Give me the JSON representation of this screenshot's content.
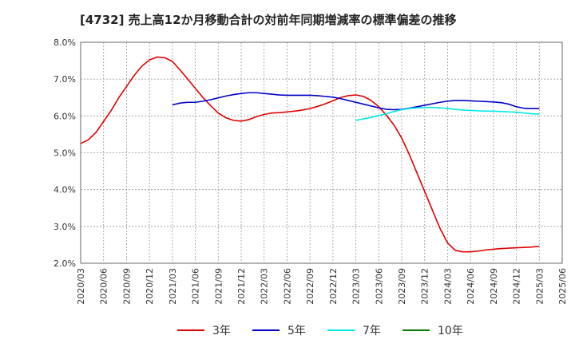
{
  "chart_data": {
    "type": "line",
    "title": "[4732]  売上高12か月移動合計の対前年同期増減率の標準偏差の推移",
    "xlabel": "",
    "ylabel": "",
    "x_tick_labels": [
      "2020/03",
      "2020/06",
      "2020/09",
      "2020/12",
      "2021/03",
      "2021/06",
      "2021/09",
      "2021/12",
      "2022/03",
      "2022/06",
      "2022/09",
      "2022/12",
      "2023/03",
      "2023/06",
      "2023/09",
      "2023/12",
      "2024/03",
      "2024/06",
      "2024/09",
      "2024/12",
      "2025/03",
      "2025/06"
    ],
    "y_tick_labels": [
      "2.0%",
      "3.0%",
      "4.0%",
      "5.0%",
      "6.0%",
      "7.0%",
      "8.0%"
    ],
    "ylim": [
      2.0,
      8.0
    ],
    "grid": true,
    "legend_position": "bottom",
    "series": [
      {
        "name": "3年",
        "color": "#e00000",
        "x": [
          "2020/03",
          "2020/04",
          "2020/05",
          "2020/06",
          "2020/07",
          "2020/08",
          "2020/09",
          "2020/10",
          "2020/11",
          "2020/12",
          "2021/01",
          "2021/02",
          "2021/03",
          "2021/04",
          "2021/05",
          "2021/06",
          "2021/07",
          "2021/08",
          "2021/09",
          "2021/10",
          "2021/11",
          "2021/12",
          "2022/01",
          "2022/02",
          "2022/03",
          "2022/04",
          "2022/05",
          "2022/06",
          "2022/07",
          "2022/08",
          "2022/09",
          "2022/10",
          "2022/11",
          "2022/12",
          "2023/01",
          "2023/02",
          "2023/03",
          "2023/04",
          "2023/05",
          "2023/06",
          "2023/07",
          "2023/08",
          "2023/09",
          "2023/10",
          "2023/11",
          "2023/12",
          "2024/01",
          "2024/02",
          "2024/03",
          "2024/04",
          "2024/05",
          "2024/06",
          "2024/07",
          "2024/08",
          "2024/09",
          "2024/10",
          "2024/11",
          "2024/12",
          "2025/01",
          "2025/02",
          "2025/03"
        ],
        "values": [
          5.25,
          5.35,
          5.55,
          5.85,
          6.15,
          6.5,
          6.8,
          7.1,
          7.35,
          7.52,
          7.6,
          7.58,
          7.48,
          7.25,
          7.0,
          6.75,
          6.5,
          6.28,
          6.08,
          5.95,
          5.88,
          5.86,
          5.9,
          5.98,
          6.04,
          6.08,
          6.09,
          6.11,
          6.13,
          6.16,
          6.2,
          6.26,
          6.33,
          6.41,
          6.5,
          6.55,
          6.57,
          6.53,
          6.42,
          6.25,
          6.02,
          5.75,
          5.4,
          4.95,
          4.45,
          3.95,
          3.45,
          2.95,
          2.55,
          2.35,
          2.31,
          2.31,
          2.33,
          2.36,
          2.38,
          2.4,
          2.41,
          2.42,
          2.43,
          2.44,
          2.46
        ]
      },
      {
        "name": "5年",
        "color": "#0000c8",
        "x": [
          "2021/03",
          "2021/04",
          "2021/05",
          "2021/06",
          "2021/07",
          "2021/08",
          "2021/09",
          "2021/10",
          "2021/11",
          "2021/12",
          "2022/01",
          "2022/02",
          "2022/03",
          "2022/04",
          "2022/05",
          "2022/06",
          "2022/07",
          "2022/08",
          "2022/09",
          "2022/10",
          "2022/11",
          "2022/12",
          "2023/01",
          "2023/02",
          "2023/03",
          "2023/04",
          "2023/05",
          "2023/06",
          "2023/07",
          "2023/08",
          "2023/09",
          "2023/10",
          "2023/11",
          "2023/12",
          "2024/01",
          "2024/02",
          "2024/03",
          "2024/04",
          "2024/05",
          "2024/06",
          "2024/07",
          "2024/08",
          "2024/09",
          "2024/10",
          "2024/11",
          "2024/12",
          "2025/01",
          "2025/02",
          "2025/03"
        ],
        "values": [
          6.3,
          6.35,
          6.37,
          6.37,
          6.4,
          6.44,
          6.49,
          6.54,
          6.58,
          6.61,
          6.63,
          6.63,
          6.61,
          6.59,
          6.57,
          6.56,
          6.56,
          6.56,
          6.56,
          6.55,
          6.53,
          6.51,
          6.47,
          6.42,
          6.37,
          6.32,
          6.27,
          6.22,
          6.18,
          6.17,
          6.18,
          6.21,
          6.25,
          6.29,
          6.33,
          6.37,
          6.4,
          6.42,
          6.42,
          6.41,
          6.4,
          6.39,
          6.38,
          6.36,
          6.32,
          6.25,
          6.21,
          6.2,
          6.2
        ]
      },
      {
        "name": "7年",
        "color": "#00e8e8",
        "x": [
          "2023/03",
          "2023/04",
          "2023/05",
          "2023/06",
          "2023/07",
          "2023/08",
          "2023/09",
          "2023/10",
          "2023/11",
          "2023/12",
          "2024/01",
          "2024/02",
          "2024/03",
          "2024/04",
          "2024/05",
          "2024/06",
          "2024/07",
          "2024/08",
          "2024/09",
          "2024/10",
          "2024/11",
          "2024/12",
          "2025/01",
          "2025/02",
          "2025/03"
        ],
        "values": [
          5.88,
          5.92,
          5.96,
          6.01,
          6.06,
          6.12,
          6.17,
          6.2,
          6.22,
          6.23,
          6.23,
          6.22,
          6.2,
          6.18,
          6.16,
          6.15,
          6.14,
          6.13,
          6.13,
          6.12,
          6.11,
          6.1,
          6.08,
          6.06,
          6.05
        ]
      },
      {
        "name": "10年",
        "color": "#008000",
        "x": [],
        "values": []
      }
    ]
  }
}
